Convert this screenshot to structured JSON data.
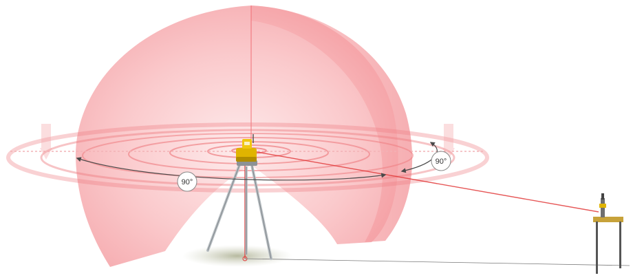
{
  "diagram": {
    "angle_labels": [
      {
        "id": "horizontal-sweep",
        "text": "90°"
      },
      {
        "id": "right-sweep",
        "text": "90°"
      }
    ],
    "colors": {
      "beam": "#e23a3a",
      "dome_fill": "#f7a4a8",
      "plane_ring": "#ee7c80",
      "instrument_body": "#e0b400",
      "tripod_leg": "#b9bfc3",
      "ground_shadow": "#b9bca8",
      "arrow": "#4a4a4a"
    },
    "icons": {
      "instrument": "rotating-laser-level-icon",
      "tripod": "tripod-icon",
      "target": "surveying-target-icon"
    }
  }
}
